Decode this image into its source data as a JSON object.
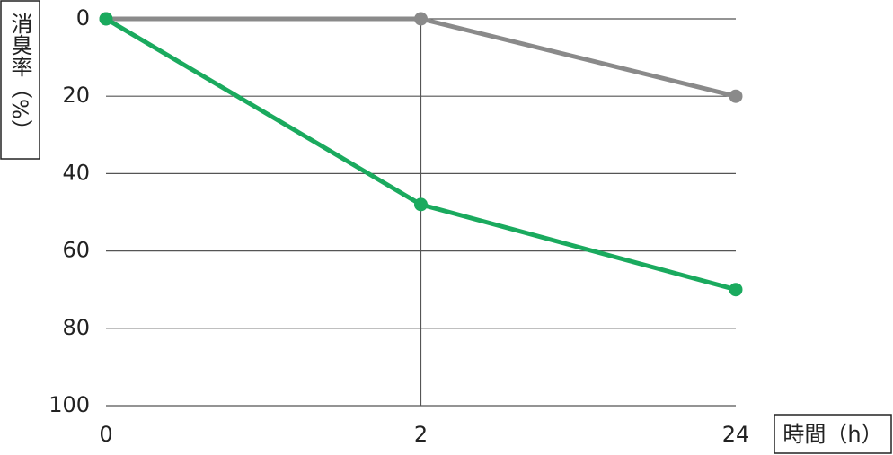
{
  "chart_data": {
    "type": "line",
    "y_label": "消臭率（%）",
    "x_label": "時間（h）",
    "categories": [
      "0",
      "2",
      "24"
    ],
    "series": [
      {
        "color": "#8a8a8a",
        "values": [
          0,
          0,
          20
        ]
      },
      {
        "color": "#1aaa5e",
        "values": [
          0,
          48,
          70
        ]
      }
    ],
    "ylim": [
      0,
      100
    ],
    "y_reversed": true,
    "yticks": [
      0,
      20,
      40,
      60,
      80,
      100
    ],
    "grid": true
  }
}
